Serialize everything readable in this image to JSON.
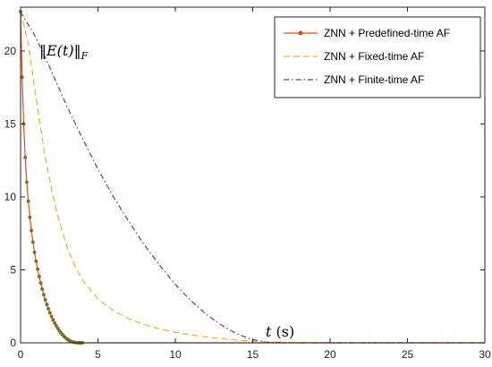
{
  "chart_data": {
    "type": "line",
    "title": "",
    "xlabel": "t (s)",
    "ylabel": "||E(t)||_F",
    "xlim": [
      0,
      30
    ],
    "ylim": [
      0,
      23
    ],
    "xticks": [
      0,
      5,
      10,
      15,
      20,
      25,
      30
    ],
    "yticks": [
      0,
      5,
      10,
      15,
      20
    ],
    "grid": false,
    "legend_position": "top-right",
    "annotations": {
      "ylabel_text": "‖E(t)‖",
      "ylabel_sub": "F",
      "xlabel_var": "t",
      "xlabel_unit": "(s)"
    },
    "series": [
      {
        "name": "ZNN + Predefined-time AF",
        "color": "#d95319",
        "marker_color": "#7f6a2a",
        "style": "solid-marker",
        "x": [
          0,
          0.1,
          0.2,
          0.3,
          0.4,
          0.5,
          0.6,
          0.7,
          0.8,
          0.9,
          1.0,
          1.1,
          1.2,
          1.3,
          1.4,
          1.5,
          1.6,
          1.7,
          1.8,
          1.9,
          2.0,
          2.1,
          2.2,
          2.3,
          2.4,
          2.5,
          2.6,
          2.7,
          2.8,
          2.9,
          3.0,
          3.1,
          3.2,
          3.3,
          3.4,
          3.5,
          3.6,
          3.7,
          3.8,
          3.9,
          4.0,
          5,
          6,
          8,
          10,
          12,
          15,
          20,
          25,
          30
        ],
        "y": [
          22.7,
          18.2,
          15.0,
          12.7,
          11.0,
          9.7,
          8.6,
          7.7,
          6.9,
          6.2,
          5.6,
          5.05,
          4.55,
          4.1,
          3.68,
          3.3,
          2.95,
          2.63,
          2.33,
          2.06,
          1.81,
          1.58,
          1.37,
          1.18,
          1.0,
          0.84,
          0.7,
          0.57,
          0.45,
          0.35,
          0.26,
          0.19,
          0.13,
          0.08,
          0.05,
          0.03,
          0.015,
          0.006,
          0.002,
          0.001,
          0,
          0,
          0,
          0,
          0,
          0,
          0,
          0,
          0,
          0
        ]
      },
      {
        "name": "ZNN + Fixed-time AF",
        "color": "#e3b22c",
        "style": "dashed",
        "x": [
          0,
          0.5,
          1,
          1.5,
          2,
          2.5,
          3,
          3.5,
          4,
          5,
          6,
          7,
          8,
          9,
          10,
          11,
          12,
          13,
          14,
          15,
          16,
          17,
          18,
          20,
          22,
          25,
          30
        ],
        "y": [
          22.7,
          20.5,
          16.8,
          13.3,
          10.5,
          8.3,
          6.6,
          5.3,
          4.3,
          3.0,
          2.2,
          1.65,
          1.25,
          0.95,
          0.72,
          0.55,
          0.4,
          0.28,
          0.18,
          0.11,
          0.06,
          0.03,
          0.015,
          0.005,
          0,
          0,
          0
        ]
      },
      {
        "name": "ZNN + Finite-time AF",
        "color": "#7e2f8e",
        "style": "dashdot",
        "x": [
          0,
          1,
          2,
          3,
          4,
          5,
          6,
          7,
          8,
          9,
          10,
          11,
          12,
          13,
          14,
          15,
          16,
          18,
          20,
          25,
          30
        ],
        "y": [
          22.7,
          20.9,
          18.6,
          16.2,
          14.0,
          11.9,
          10.0,
          8.3,
          6.7,
          5.3,
          4.0,
          2.9,
          1.95,
          1.2,
          0.6,
          0.22,
          0.04,
          0,
          0,
          0,
          0
        ]
      }
    ]
  }
}
